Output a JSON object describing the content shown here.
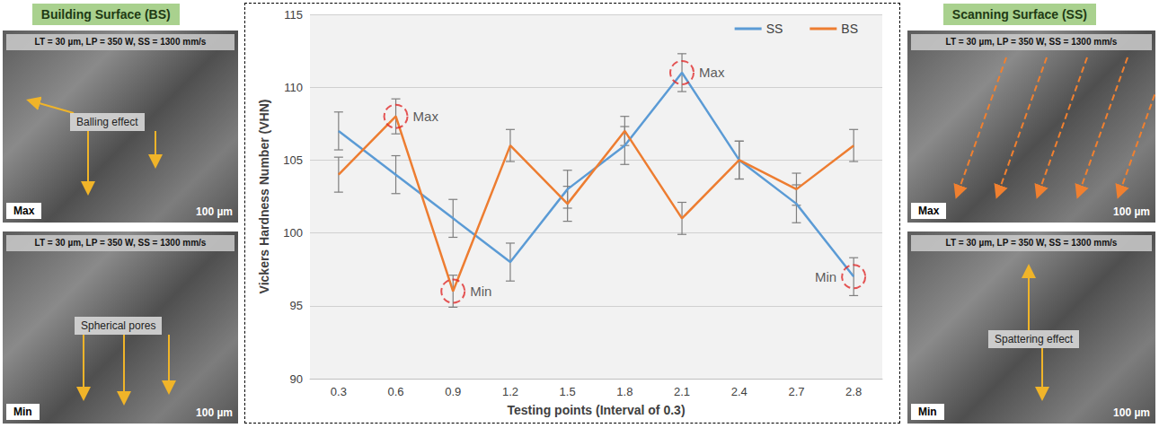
{
  "chart_data": {
    "type": "line",
    "x_label": "Testing points (Interval of 0.3)",
    "y_label": "Vickers Hardness Number (VHN)",
    "categories": [
      "0.3",
      "0.6",
      "0.9",
      "1.2",
      "1.5",
      "1.8",
      "2.1",
      "2.4",
      "2.7",
      "2.8"
    ],
    "series": [
      {
        "name": "SS",
        "color": "#5b9bd5",
        "marker": "none",
        "values": [
          107,
          104,
          101,
          98,
          103,
          106,
          111,
          105,
          102,
          97
        ],
        "errors": [
          1.3,
          1.3,
          1.3,
          1.3,
          1.3,
          1.3,
          1.3,
          1.3,
          1.3,
          1.3
        ]
      },
      {
        "name": "BS",
        "color": "#ed7d31",
        "marker": "none",
        "values": [
          104,
          108,
          96,
          106,
          102,
          107,
          101,
          105,
          103,
          106
        ],
        "errors": [
          1.2,
          1.2,
          1.1,
          1.1,
          1.2,
          1.0,
          1.1,
          1.3,
          1.1,
          1.1
        ]
      }
    ],
    "annotations": [
      {
        "text": "Max",
        "series": "BS",
        "x": "0.6"
      },
      {
        "text": "Min",
        "series": "BS",
        "x": "0.9"
      },
      {
        "text": "Max",
        "series": "SS",
        "x": "2.1"
      },
      {
        "text": "Min",
        "series": "SS",
        "x": "2.8"
      }
    ],
    "ylim": [
      90,
      115
    ],
    "yticks": [
      90,
      95,
      100,
      105,
      110,
      115
    ],
    "grid": true,
    "legend": "upper right"
  },
  "panels": [
    {
      "title": "Building Surface (BS)",
      "images": [
        {
          "caption": "LT = 30 µm, LP = 350 W, SS = 1300 mm/s",
          "tag": "Max",
          "scale": "100 µm",
          "callout": "Balling effect"
        },
        {
          "caption": "LT = 30 µm, LP = 350 W, SS = 1300 mm/s",
          "tag": "Min",
          "scale": "100 µm",
          "callout": "Spherical pores"
        }
      ]
    },
    {
      "title": "Scanning Surface (SS)",
      "images": [
        {
          "caption": "LT = 30 µm, LP = 350 W, SS = 1300 mm/s",
          "tag": "Max",
          "scale": "100 µm"
        },
        {
          "caption": "LT = 30 µm, LP = 350 W, SS = 1300 mm/s",
          "tag": "Min",
          "scale": "100 µm",
          "callout": "Spattering effect"
        }
      ]
    }
  ]
}
